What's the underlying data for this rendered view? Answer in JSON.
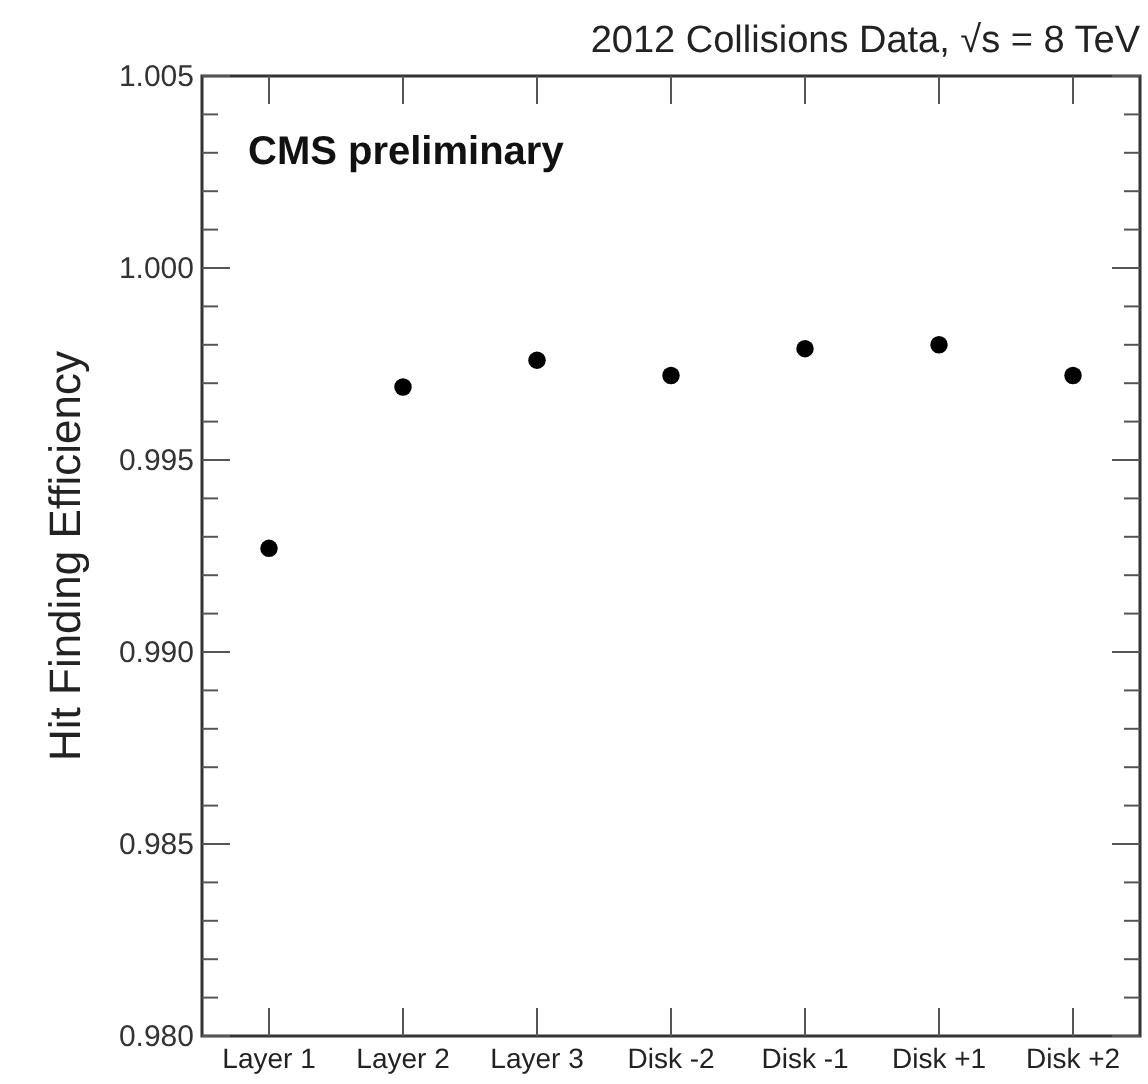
{
  "chart_data": {
    "type": "scatter",
    "title": "2012 Collisions Data, √s = 8 TeV",
    "ylabel": "Hit Finding Efficiency",
    "annotations": [
      "CMS preliminary"
    ],
    "categories": [
      "Layer 1",
      "Layer 2",
      "Layer 3",
      "Disk -2",
      "Disk -1",
      "Disk +1",
      "Disk +2"
    ],
    "series": [
      {
        "color": "#000000",
        "values": [
          0.9927,
          0.9969,
          0.9976,
          0.9972,
          0.9979,
          0.998,
          0.9972
        ]
      }
    ],
    "ylim": [
      0.98,
      1.005
    ],
    "yticks": [
      {
        "value": 0.98,
        "label": "0.980"
      },
      {
        "value": 0.981,
        "label": null
      },
      {
        "value": 0.982,
        "label": null
      },
      {
        "value": 0.983,
        "label": null
      },
      {
        "value": 0.984,
        "label": null
      },
      0.985,
      {
        "value": 0.986,
        "label": null
      },
      {
        "value": 0.987,
        "label": null
      },
      {
        "value": 0.988,
        "label": null
      },
      {
        "value": 0.989,
        "label": null
      },
      {
        "value": 0.99,
        "label": "0.990"
      },
      {
        "value": 0.991,
        "label": null
      },
      {
        "value": 0.992,
        "label": null
      },
      {
        "value": 0.993,
        "label": null
      },
      {
        "value": 0.994,
        "label": null
      },
      0.995,
      {
        "value": 0.996,
        "label": null
      },
      {
        "value": 0.997,
        "label": null
      },
      {
        "value": 0.998,
        "label": null
      },
      {
        "value": 0.999,
        "label": null
      },
      {
        "value": 1.0,
        "label": "1.000"
      },
      {
        "value": 1.001,
        "label": null
      },
      {
        "value": 1.002,
        "label": null
      },
      {
        "value": 1.003,
        "label": null
      },
      {
        "value": 1.004,
        "label": null
      },
      1.005
    ],
    "marker": "circle",
    "grid": false
  }
}
